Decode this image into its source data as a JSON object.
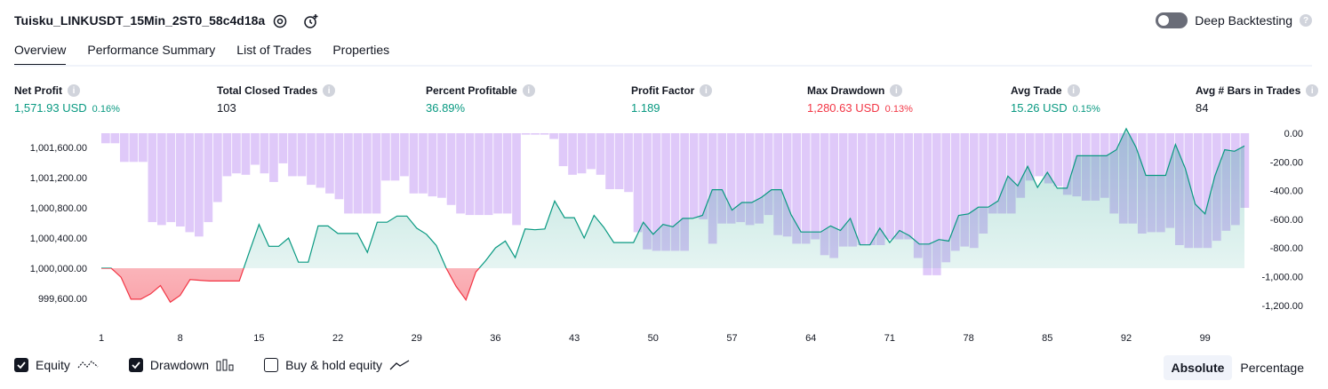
{
  "header": {
    "title": "Tuisku_LINKUSDT_15Min_2ST0_58c4d18a",
    "deep_backtesting_label": "Deep Backtesting"
  },
  "tabs": [
    {
      "label": "Overview",
      "active": true
    },
    {
      "label": "Performance Summary",
      "active": false
    },
    {
      "label": "List of Trades",
      "active": false
    },
    {
      "label": "Properties",
      "active": false
    }
  ],
  "metrics": [
    {
      "label": "Net Profit",
      "value": "1,571.93 USD",
      "pct": "0.16%",
      "color": "#089981"
    },
    {
      "label": "Total Closed Trades",
      "value": "103",
      "pct": "",
      "color": "#131722"
    },
    {
      "label": "Percent Profitable",
      "value": "36.89%",
      "pct": "",
      "color": "#089981"
    },
    {
      "label": "Profit Factor",
      "value": "1.189",
      "pct": "",
      "color": "#089981"
    },
    {
      "label": "Max Drawdown",
      "value": "1,280.63 USD",
      "pct": "0.13%",
      "color": "#f23645"
    },
    {
      "label": "Avg Trade",
      "value": "15.26 USD",
      "pct": "0.15%",
      "color": "#089981"
    },
    {
      "label": "Avg # Bars in Trades",
      "value": "84",
      "pct": "",
      "color": "#131722"
    }
  ],
  "legend": {
    "equity_label": "Equity",
    "drawdown_label": "Drawdown",
    "buyhold_label": "Buy & hold equity",
    "equity_checked": true,
    "drawdown_checked": true,
    "buyhold_checked": false
  },
  "view_mode": {
    "absolute_label": "Absolute",
    "percentage_label": "Percentage",
    "selected": "Absolute"
  },
  "chart_data": {
    "type": "line",
    "left_axis": {
      "ticks": [
        1001600,
        1001200,
        1000800,
        1000400,
        1000000,
        999600
      ],
      "tick_labels": [
        "1,001,600.00",
        "1,001,200.00",
        "1,000,800.00",
        "1,000,400.00",
        "1,000,000.00",
        "999,600.00"
      ],
      "range": [
        999400,
        1001800
      ]
    },
    "right_axis": {
      "ticks": [
        0,
        -200,
        -400,
        -600,
        -800,
        -1000,
        -1200
      ],
      "tick_labels": [
        "0.00",
        "-200.00",
        "-400.00",
        "-600.00",
        "-800.00",
        "-1,000.00",
        "-1,200.00"
      ],
      "range": [
        -1300,
        0
      ]
    },
    "x_tick_labels": [
      "1",
      "8",
      "15",
      "22",
      "29",
      "36",
      "43",
      "50",
      "57",
      "64",
      "71",
      "78",
      "85",
      "92",
      "99"
    ],
    "x_ticks": [
      1,
      8,
      15,
      22,
      29,
      36,
      43,
      50,
      57,
      64,
      71,
      78,
      85,
      92,
      99
    ],
    "baseline": 1000000,
    "colors": {
      "equity_pos": "#089981",
      "equity_neg": "#f23645",
      "drawdown": "#cca8f5"
    },
    "equity": [
      1000000,
      1000000,
      999880,
      999590,
      999590,
      999660,
      999770,
      999550,
      999640,
      999850,
      999840,
      999830,
      999830,
      999830,
      999830,
      1000210,
      1000580,
      1000290,
      1000290,
      1000400,
      1000080,
      1000080,
      1000560,
      1000560,
      1000460,
      1000460,
      1000460,
      1000210,
      1000610,
      1000610,
      1000690,
      1000690,
      1000530,
      1000450,
      1000300,
      1000000,
      999760,
      999580,
      999950,
      1000100,
      1000270,
      1000360,
      1000140,
      1000520,
      1000510,
      1000520,
      1000890,
      1000670,
      1000670,
      1000400,
      1000700,
      1000540,
      1000340,
      1000340,
      1000340,
      1000610,
      1000450,
      1000580,
      1000550,
      1000660,
      1000660,
      1000700,
      1001040,
      1001040,
      1000770,
      1000870,
      1000870,
      1000940,
      1001040,
      1001040,
      1000710,
      1000480,
      1000480,
      1000480,
      1000560,
      1000500,
      1000660,
      1000310,
      1000310,
      1000530,
      1000340,
      1000500,
      1000430,
      1000320,
      1000320,
      1000380,
      1000360,
      1000700,
      1000720,
      1000810,
      1000810,
      1000890,
      1001220,
      1001090,
      1001350,
      1001070,
      1001270,
      1001060,
      1001060,
      1001490,
      1001490,
      1001490,
      1001490,
      1001570,
      1001850,
      1001600,
      1001230,
      1001230,
      1001230,
      1001640,
      1001320,
      1000850,
      1000720,
      1001220,
      1001570,
      1001550,
      1001620
    ],
    "drawdown": [
      -70,
      -70,
      -200,
      -200,
      -200,
      -620,
      -640,
      -620,
      -650,
      -690,
      -720,
      -620,
      -480,
      -300,
      -280,
      -290,
      -220,
      -280,
      -340,
      -210,
      -300,
      -300,
      -360,
      -380,
      -420,
      -460,
      -560,
      -560,
      -560,
      -560,
      -330,
      -330,
      -300,
      -420,
      -420,
      -440,
      -450,
      -500,
      -560,
      -570,
      -570,
      -570,
      -560,
      -560,
      -640,
      -10,
      -10,
      -10,
      -40,
      -230,
      -290,
      -280,
      -250,
      -290,
      -390,
      -390,
      -410,
      -690,
      -810,
      -820,
      -820,
      -820,
      -820,
      -590,
      -600,
      -770,
      -630,
      -630,
      -620,
      -640,
      -630,
      -570,
      -710,
      -720,
      -770,
      -770,
      -740,
      -850,
      -870,
      -790,
      -790,
      -780,
      -780,
      -780,
      -740,
      -740,
      -740,
      -870,
      -990,
      -990,
      -900,
      -820,
      -790,
      -800,
      -700,
      -560,
      -560,
      -560,
      -450,
      -330,
      -300,
      -350,
      -370,
      -430,
      -440,
      -470,
      -470,
      -450,
      -560,
      -630,
      -630,
      -700,
      -690,
      -690,
      -660,
      -780,
      -800,
      -800,
      -800,
      -750,
      -680,
      -640,
      -520
    ]
  }
}
